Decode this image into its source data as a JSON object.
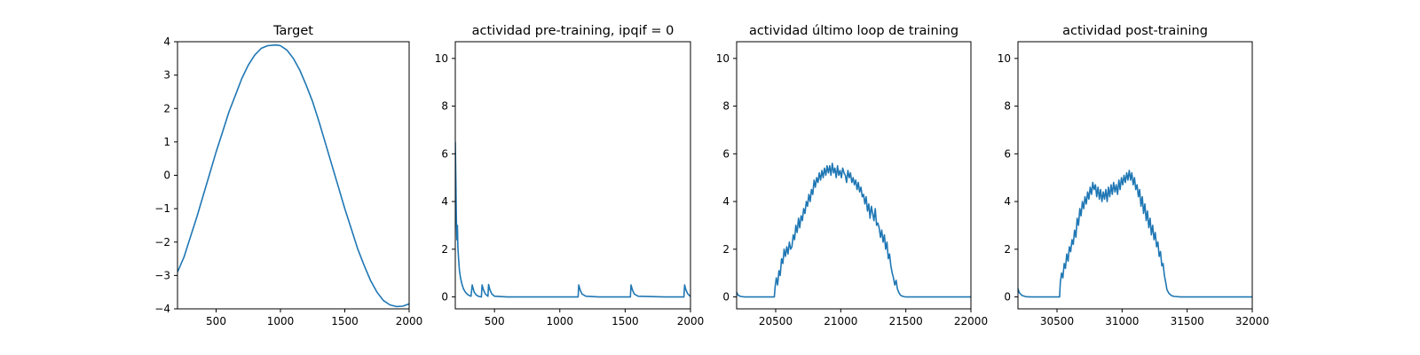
{
  "chart_data": [
    {
      "type": "line",
      "title": "Target",
      "xlim": [
        200,
        2000
      ],
      "ylim": [
        -4,
        4
      ],
      "xticks": [
        500,
        1000,
        1500,
        2000
      ],
      "xtick_labels": [
        "500",
        "1000",
        "1500",
        "2000"
      ],
      "yticks": [
        -4,
        -3,
        -2,
        -1,
        0,
        1,
        2,
        3,
        4
      ],
      "ytick_labels": [
        "−4",
        "−3",
        "−2",
        "−1",
        "0",
        "1",
        "2",
        "3",
        "4"
      ],
      "line_color": "#1f77b4",
      "series": [
        {
          "x": [
            200,
            250,
            300,
            350,
            400,
            450,
            500,
            550,
            600,
            650,
            700,
            750,
            800,
            850,
            900,
            950,
            975,
            1000,
            1050,
            1100,
            1150,
            1200,
            1250,
            1300,
            1350,
            1400,
            1450,
            1500,
            1550,
            1600,
            1650,
            1700,
            1750,
            1800,
            1850,
            1900,
            1950,
            2000
          ],
          "y": [
            -2.9,
            -2.45,
            -1.85,
            -1.25,
            -0.6,
            0.05,
            0.7,
            1.3,
            1.9,
            2.4,
            2.9,
            3.3,
            3.6,
            3.8,
            3.88,
            3.9,
            3.9,
            3.88,
            3.75,
            3.5,
            3.15,
            2.7,
            2.2,
            1.6,
            0.95,
            0.3,
            -0.35,
            -1.0,
            -1.6,
            -2.2,
            -2.7,
            -3.15,
            -3.5,
            -3.75,
            -3.88,
            -3.93,
            -3.92,
            -3.85
          ]
        }
      ]
    },
    {
      "type": "line",
      "title": "actividad pre-training, ipqif = 0",
      "xlim": [
        200,
        2000
      ],
      "ylim": [
        -0.5,
        10.7
      ],
      "xticks": [
        500,
        1000,
        1500,
        2000
      ],
      "xtick_labels": [
        "500",
        "1000",
        "1500",
        "2000"
      ],
      "yticks": [
        0,
        2,
        4,
        6,
        8,
        10
      ],
      "ytick_labels": [
        "0",
        "2",
        "4",
        "6",
        "8",
        "10"
      ],
      "line_color": "#1f77b4",
      "series": [
        {
          "x": [
            200,
            204,
            208,
            212,
            216,
            220,
            225,
            232,
            240,
            250,
            262,
            275,
            290,
            305,
            320,
            330,
            335,
            345,
            360,
            380,
            400,
            405,
            415,
            430,
            450,
            455,
            465,
            480,
            500,
            600,
            800,
            1000,
            1140,
            1145,
            1155,
            1170,
            1200,
            1300,
            1500,
            1540,
            1545,
            1555,
            1570,
            1600,
            1800,
            1950,
            1955,
            1965,
            1980,
            2000
          ],
          "y": [
            6.5,
            5.0,
            3.3,
            2.4,
            3.0,
            2.1,
            1.6,
            1.1,
            0.8,
            0.55,
            0.35,
            0.22,
            0.12,
            0.06,
            0.03,
            0.5,
            0.38,
            0.2,
            0.08,
            0.02,
            0.0,
            0.5,
            0.3,
            0.12,
            0.03,
            0.52,
            0.3,
            0.12,
            0.03,
            0.0,
            0.0,
            0.0,
            0.0,
            0.5,
            0.3,
            0.12,
            0.03,
            0.0,
            0.0,
            0.0,
            0.5,
            0.3,
            0.12,
            0.03,
            0.0,
            0.0,
            0.5,
            0.3,
            0.12,
            0.02
          ]
        }
      ]
    },
    {
      "type": "line",
      "title": "actividad último loop de training",
      "xlim": [
        20200,
        22000
      ],
      "ylim": [
        -0.5,
        10.7
      ],
      "xticks": [
        20500,
        21000,
        21500,
        22000
      ],
      "xtick_labels": [
        "20500",
        "21000",
        "21500",
        "22000"
      ],
      "yticks": [
        0,
        2,
        4,
        6,
        8,
        10
      ],
      "ytick_labels": [
        "0",
        "2",
        "4",
        "6",
        "8",
        "10"
      ],
      "line_color": "#1f77b4",
      "series": [
        {
          "x": [
            20200,
            20210,
            20230,
            20260,
            20300,
            20400,
            20490,
            20495,
            20505,
            20515,
            20525,
            20535,
            20545,
            20555,
            20565,
            20575,
            20585,
            20595,
            20605,
            20615,
            20625,
            20635,
            20645,
            20655,
            20665,
            20675,
            20685,
            20695,
            20705,
            20715,
            20725,
            20735,
            20745,
            20755,
            20765,
            20775,
            20785,
            20795,
            20805,
            20815,
            20825,
            20835,
            20845,
            20855,
            20865,
            20875,
            20885,
            20895,
            20905,
            20915,
            20925,
            20935,
            20945,
            20955,
            20965,
            20975,
            20985,
            20995,
            21005,
            21015,
            21025,
            21035,
            21045,
            21055,
            21065,
            21075,
            21085,
            21095,
            21105,
            21115,
            21125,
            21135,
            21145,
            21155,
            21165,
            21175,
            21185,
            21195,
            21205,
            21215,
            21225,
            21235,
            21245,
            21255,
            21265,
            21275,
            21285,
            21295,
            21305,
            21315,
            21325,
            21335,
            21345,
            21355,
            21365,
            21375,
            21385,
            21395,
            21405,
            21415,
            21425,
            21435,
            21445,
            21455,
            21465,
            21480,
            21500,
            21550,
            21600,
            21700,
            21800,
            21900,
            22000
          ],
          "y": [
            0.2,
            0.08,
            0.02,
            0.0,
            0.0,
            0.0,
            0.0,
            0.4,
            0.8,
            0.5,
            1.1,
            0.9,
            1.6,
            1.4,
            2.0,
            1.7,
            2.1,
            1.8,
            2.3,
            2.0,
            2.1,
            2.6,
            2.4,
            3.0,
            2.7,
            3.3,
            2.9,
            3.4,
            3.2,
            3.7,
            3.5,
            4.0,
            3.8,
            4.3,
            4.0,
            4.5,
            4.3,
            4.9,
            4.6,
            5.0,
            4.8,
            5.2,
            4.9,
            5.3,
            5.0,
            5.4,
            5.1,
            5.5,
            5.2,
            5.5,
            5.1,
            5.6,
            5.2,
            5.4,
            5.0,
            5.5,
            5.1,
            5.3,
            5.0,
            5.4,
            5.2,
            5.1,
            4.8,
            5.3,
            5.0,
            5.2,
            4.8,
            5.0,
            4.7,
            4.9,
            4.5,
            4.8,
            4.4,
            4.6,
            4.2,
            4.3,
            3.9,
            4.2,
            3.6,
            3.9,
            3.3,
            3.8,
            3.5,
            3.2,
            3.7,
            3.0,
            3.1,
            2.9,
            2.5,
            2.8,
            2.3,
            2.6,
            2.0,
            2.3,
            1.6,
            1.8,
            1.3,
            1.0,
            0.8,
            0.5,
            0.7,
            0.35,
            0.2,
            0.1,
            0.05,
            0.02,
            0.0,
            0.0,
            0.0,
            0.0,
            0.0,
            0.0,
            0.0
          ]
        }
      ]
    },
    {
      "type": "line",
      "title": "actividad post-training",
      "xlim": [
        30200,
        32000
      ],
      "ylim": [
        -0.5,
        10.7
      ],
      "xticks": [
        30500,
        31000,
        31500,
        32000
      ],
      "xtick_labels": [
        "30500",
        "31000",
        "31500",
        "32000"
      ],
      "yticks": [
        0,
        2,
        4,
        6,
        8,
        10
      ],
      "ytick_labels": [
        "0",
        "2",
        "4",
        "6",
        "8",
        "10"
      ],
      "line_color": "#1f77b4",
      "series": [
        {
          "x": [
            30200,
            30210,
            30230,
            30260,
            30300,
            30400,
            30520,
            30525,
            30535,
            30545,
            30555,
            30565,
            30575,
            30585,
            30595,
            30605,
            30615,
            30625,
            30635,
            30645,
            30655,
            30665,
            30675,
            30685,
            30695,
            30705,
            30715,
            30725,
            30735,
            30745,
            30755,
            30765,
            30775,
            30785,
            30795,
            30805,
            30815,
            30825,
            30835,
            30845,
            30855,
            30865,
            30875,
            30885,
            30895,
            30905,
            30915,
            30925,
            30935,
            30945,
            30955,
            30965,
            30975,
            30985,
            30995,
            31005,
            31015,
            31025,
            31035,
            31045,
            31055,
            31065,
            31075,
            31085,
            31095,
            31105,
            31115,
            31125,
            31135,
            31145,
            31155,
            31165,
            31175,
            31185,
            31195,
            31205,
            31215,
            31225,
            31235,
            31245,
            31255,
            31265,
            31275,
            31285,
            31295,
            31305,
            31315,
            31325,
            31335,
            31345,
            31360,
            31380,
            31400,
            31450,
            31500,
            31600,
            31700,
            31800,
            31900,
            32000
          ],
          "y": [
            0.35,
            0.18,
            0.06,
            0.01,
            0.0,
            0.0,
            0.0,
            0.6,
            1.0,
            0.8,
            1.4,
            1.2,
            1.8,
            1.5,
            2.1,
            1.9,
            2.4,
            2.2,
            2.8,
            2.5,
            3.3,
            3.0,
            3.7,
            3.4,
            4.0,
            3.7,
            4.2,
            3.9,
            4.4,
            4.1,
            4.6,
            4.3,
            4.8,
            4.5,
            4.7,
            4.2,
            4.6,
            4.1,
            4.5,
            4.0,
            4.4,
            4.1,
            4.5,
            4.0,
            4.6,
            4.2,
            4.7,
            4.3,
            4.8,
            4.4,
            4.7,
            4.3,
            4.9,
            4.5,
            5.0,
            4.7,
            5.1,
            4.8,
            5.2,
            4.9,
            5.3,
            4.9,
            5.2,
            4.7,
            5.0,
            4.5,
            4.7,
            4.2,
            4.5,
            3.8,
            4.2,
            3.5,
            3.9,
            3.2,
            3.6,
            2.9,
            3.3,
            2.6,
            3.0,
            2.4,
            2.7,
            2.1,
            2.3,
            1.7,
            1.9,
            1.3,
            1.4,
            0.9,
            0.6,
            0.3,
            0.15,
            0.05,
            0.02,
            0.0,
            0.0,
            0.0,
            0.0,
            0.0,
            0.0,
            0.0
          ]
        }
      ]
    }
  ]
}
